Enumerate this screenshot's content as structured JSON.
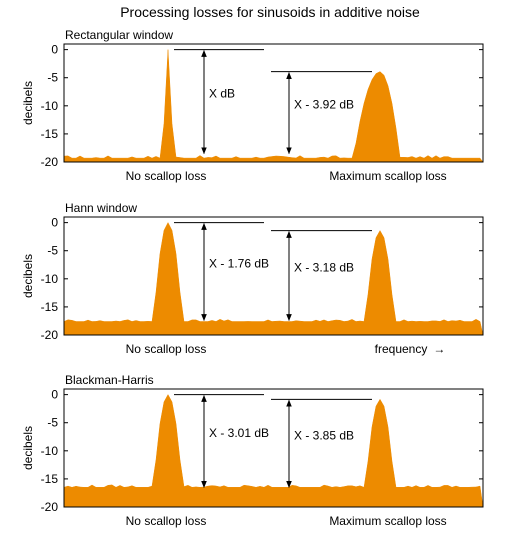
{
  "title": "Processing losses for sinusoids in additive noise",
  "colors": {
    "fill": "#ed8b00",
    "stroke": "#b86a00",
    "frame": "#000000",
    "grid": "#d9d9d9"
  },
  "chart_data": [
    {
      "type": "area",
      "title": "Rectangular window",
      "ylabel": "decibels",
      "ylim": [
        -20,
        1
      ],
      "yticks": [
        "0",
        "-5",
        "-10",
        "-15",
        "-20"
      ],
      "grid": false,
      "noise_floor": -19.3,
      "peaks": [
        {
          "position": 0.25,
          "level": 0,
          "type": "spike"
        },
        {
          "position": 0.75,
          "level": -3.92,
          "type": "wide"
        }
      ],
      "annotations": [
        {
          "label": "X dB",
          "top": 0,
          "bottom": -18.5
        },
        {
          "label": "X - 3.92 dB",
          "top": -3.92,
          "bottom": -18.5
        }
      ],
      "captions": [
        {
          "text": "No scallop loss",
          "position": 0.25
        },
        {
          "text": "Maximum scallop loss",
          "position": 0.75
        }
      ]
    },
    {
      "type": "area",
      "title": "Hann window",
      "ylabel": "decibels",
      "ylim": [
        -20,
        1
      ],
      "yticks": [
        "0",
        "-5",
        "-10",
        "-15",
        "-20"
      ],
      "grid": false,
      "noise_floor": -17.6,
      "peaks": [
        {
          "position": 0.25,
          "level": 0,
          "type": "narrow"
        },
        {
          "position": 0.75,
          "level": -1.42,
          "type": "narrow"
        }
      ],
      "annotations": [
        {
          "label": "X - 1.76 dB",
          "top": 0,
          "bottom": -17.4
        },
        {
          "label": "X - 3.18 dB",
          "top": -1.42,
          "bottom": -17.4
        }
      ],
      "captions": [
        {
          "text": "No scallop loss",
          "position": 0.25
        },
        {
          "text": "frequency",
          "arrow": "→",
          "position": 0.8
        }
      ]
    },
    {
      "type": "area",
      "title": "Blackman-Harris",
      "ylabel": "decibels",
      "ylim": [
        -20,
        1
      ],
      "yticks": [
        "0",
        "-5",
        "-10",
        "-15",
        "-20"
      ],
      "grid": false,
      "noise_floor": -16.5,
      "peaks": [
        {
          "position": 0.25,
          "level": 0,
          "type": "narrow"
        },
        {
          "position": 0.75,
          "level": -0.84,
          "type": "narrow"
        }
      ],
      "annotations": [
        {
          "label": "X - 3.01 dB",
          "top": 0,
          "bottom": -16.5
        },
        {
          "label": "X - 3.85 dB",
          "top": -0.84,
          "bottom": -16.5
        }
      ],
      "captions": [
        {
          "text": "No scallop loss",
          "position": 0.25
        },
        {
          "text": "Maximum scallop loss",
          "position": 0.75
        }
      ]
    }
  ]
}
